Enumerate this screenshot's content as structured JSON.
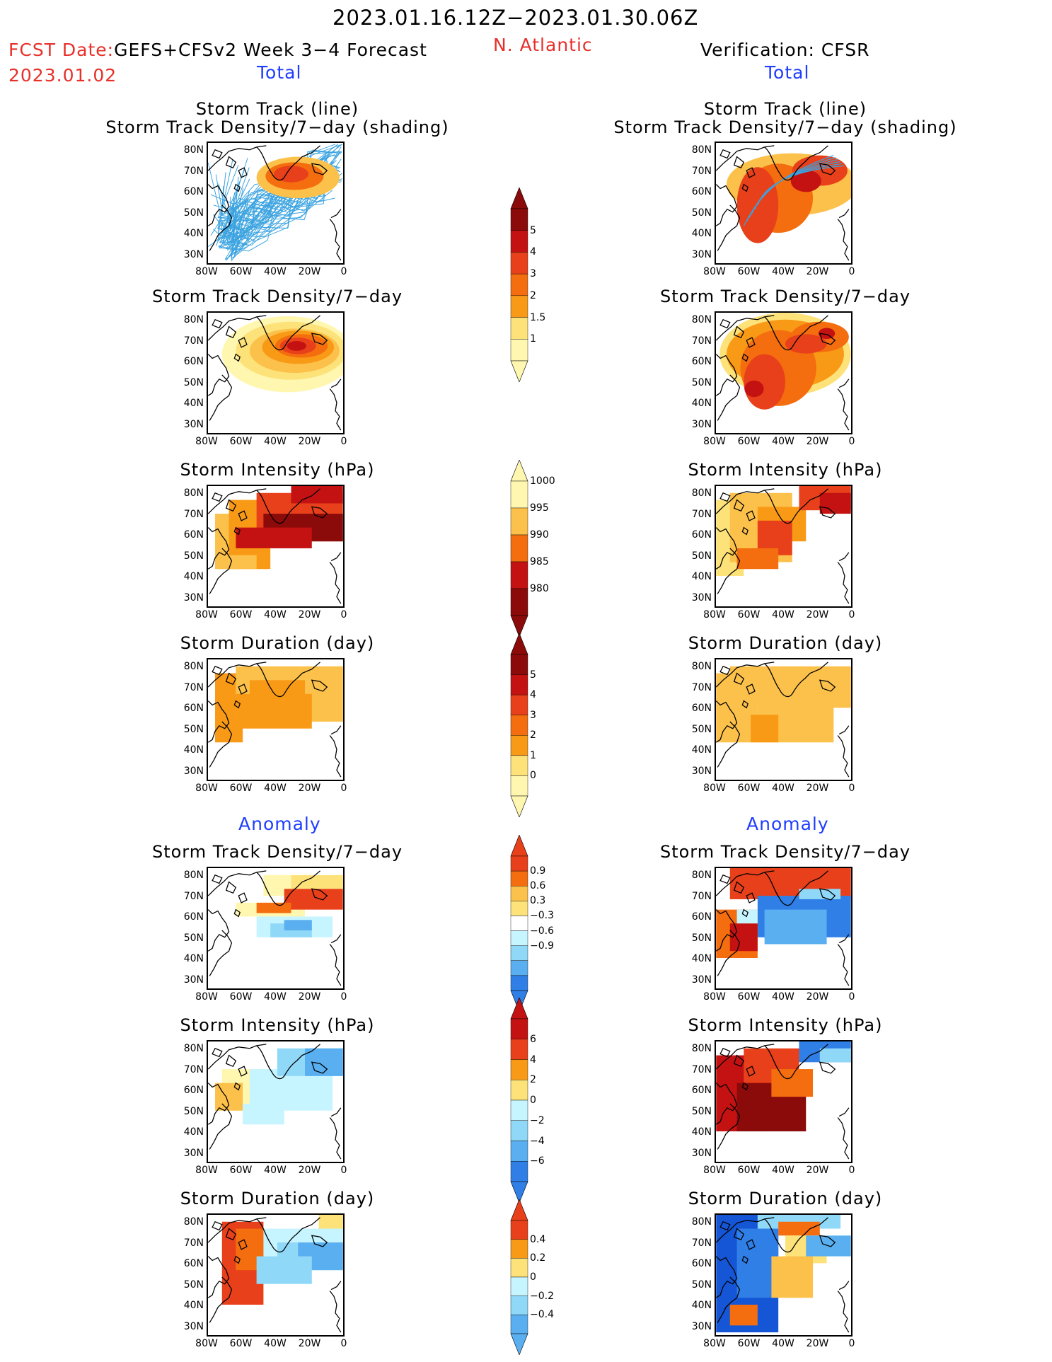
{
  "header": {
    "date_range": "2023.01.16.12Z−2023.01.30.06Z",
    "fcst_date_label": "FCST Date:",
    "model": "GEFS+CFSv2 Week 3−4 Forecast",
    "fcst_date": "2023.01.02",
    "region": "N. Atlantic",
    "verification": "Verification: CFSR"
  },
  "sections": {
    "total": "Total",
    "anomaly": "Anomaly"
  },
  "panel_titles": {
    "track_line": "Storm Track (line)",
    "track_shading": "Storm Track Density/7−day (shading)",
    "density": "Storm Track Density/7−day",
    "intensity": "Storm Intensity (hPa)",
    "duration": "Storm Duration (day)"
  },
  "axes": {
    "lat_labels": [
      "80N",
      "70N",
      "60N",
      "50N",
      "40N",
      "30N"
    ],
    "lon_labels": [
      "80W",
      "60W",
      "40W",
      "20W",
      "0"
    ]
  },
  "colorbars": {
    "density_total": [
      "5",
      "4",
      "3",
      "2",
      "1.5",
      "1"
    ],
    "intensity_total": [
      "1000",
      "995",
      "990",
      "985",
      "980"
    ],
    "duration_total": [
      "5",
      "4",
      "3",
      "2",
      "1",
      "0"
    ],
    "density_anom": [
      "0.9",
      "0.6",
      "0.3",
      "−0.3",
      "−0.6",
      "−0.9"
    ],
    "intensity_anom": [
      "6",
      "4",
      "2",
      "0",
      "−2",
      "−4",
      "−6"
    ],
    "duration_anom": [
      "0.4",
      "0.2",
      "0",
      "−0.2",
      "−0.4"
    ]
  },
  "colors": {
    "warm": [
      "#fff7b0",
      "#fde27a",
      "#fcc14a",
      "#f99a17",
      "#f46d0e",
      "#e8401a",
      "#c41212",
      "#8b0a0a"
    ],
    "cool": [
      "#c6f4ff",
      "#8fd8f8",
      "#5aaff0",
      "#2f7fe6",
      "#1556d6"
    ],
    "track_line": "#3ba3e0"
  }
}
